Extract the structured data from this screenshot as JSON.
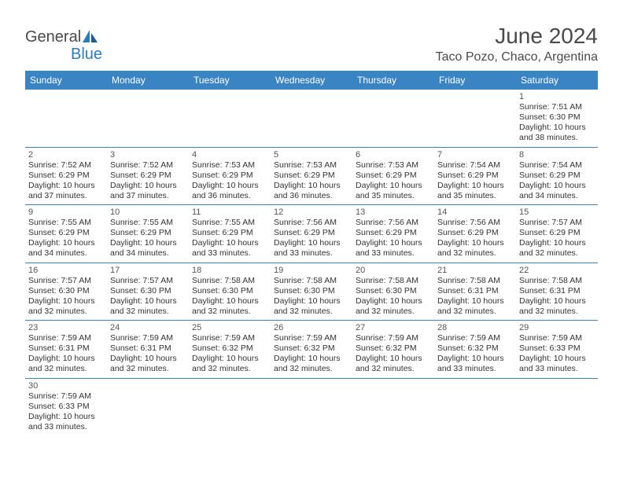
{
  "logo": {
    "general": "General",
    "blue": "Blue"
  },
  "title": "June 2024",
  "location": "Taco Pozo, Chaco, Argentina",
  "colors": {
    "header_bg": "#3b84c4",
    "header_text": "#ffffff",
    "border": "#3b84c4",
    "text": "#333333",
    "title_color": "#4a4a4a",
    "logo_blue": "#2a7bbf"
  },
  "typography": {
    "title_fontsize": 28,
    "location_fontsize": 16,
    "dayhead_fontsize": 12,
    "cell_fontsize": 10.5
  },
  "dayheads": [
    "Sunday",
    "Monday",
    "Tuesday",
    "Wednesday",
    "Thursday",
    "Friday",
    "Saturday"
  ],
  "weeks": [
    [
      null,
      null,
      null,
      null,
      null,
      null,
      {
        "n": "1",
        "sunrise": "Sunrise: 7:51 AM",
        "sunset": "Sunset: 6:30 PM",
        "daylight": "Daylight: 10 hours and 38 minutes."
      }
    ],
    [
      {
        "n": "2",
        "sunrise": "Sunrise: 7:52 AM",
        "sunset": "Sunset: 6:29 PM",
        "daylight": "Daylight: 10 hours and 37 minutes."
      },
      {
        "n": "3",
        "sunrise": "Sunrise: 7:52 AM",
        "sunset": "Sunset: 6:29 PM",
        "daylight": "Daylight: 10 hours and 37 minutes."
      },
      {
        "n": "4",
        "sunrise": "Sunrise: 7:53 AM",
        "sunset": "Sunset: 6:29 PM",
        "daylight": "Daylight: 10 hours and 36 minutes."
      },
      {
        "n": "5",
        "sunrise": "Sunrise: 7:53 AM",
        "sunset": "Sunset: 6:29 PM",
        "daylight": "Daylight: 10 hours and 36 minutes."
      },
      {
        "n": "6",
        "sunrise": "Sunrise: 7:53 AM",
        "sunset": "Sunset: 6:29 PM",
        "daylight": "Daylight: 10 hours and 35 minutes."
      },
      {
        "n": "7",
        "sunrise": "Sunrise: 7:54 AM",
        "sunset": "Sunset: 6:29 PM",
        "daylight": "Daylight: 10 hours and 35 minutes."
      },
      {
        "n": "8",
        "sunrise": "Sunrise: 7:54 AM",
        "sunset": "Sunset: 6:29 PM",
        "daylight": "Daylight: 10 hours and 34 minutes."
      }
    ],
    [
      {
        "n": "9",
        "sunrise": "Sunrise: 7:55 AM",
        "sunset": "Sunset: 6:29 PM",
        "daylight": "Daylight: 10 hours and 34 minutes."
      },
      {
        "n": "10",
        "sunrise": "Sunrise: 7:55 AM",
        "sunset": "Sunset: 6:29 PM",
        "daylight": "Daylight: 10 hours and 34 minutes."
      },
      {
        "n": "11",
        "sunrise": "Sunrise: 7:55 AM",
        "sunset": "Sunset: 6:29 PM",
        "daylight": "Daylight: 10 hours and 33 minutes."
      },
      {
        "n": "12",
        "sunrise": "Sunrise: 7:56 AM",
        "sunset": "Sunset: 6:29 PM",
        "daylight": "Daylight: 10 hours and 33 minutes."
      },
      {
        "n": "13",
        "sunrise": "Sunrise: 7:56 AM",
        "sunset": "Sunset: 6:29 PM",
        "daylight": "Daylight: 10 hours and 33 minutes."
      },
      {
        "n": "14",
        "sunrise": "Sunrise: 7:56 AM",
        "sunset": "Sunset: 6:29 PM",
        "daylight": "Daylight: 10 hours and 32 minutes."
      },
      {
        "n": "15",
        "sunrise": "Sunrise: 7:57 AM",
        "sunset": "Sunset: 6:29 PM",
        "daylight": "Daylight: 10 hours and 32 minutes."
      }
    ],
    [
      {
        "n": "16",
        "sunrise": "Sunrise: 7:57 AM",
        "sunset": "Sunset: 6:30 PM",
        "daylight": "Daylight: 10 hours and 32 minutes."
      },
      {
        "n": "17",
        "sunrise": "Sunrise: 7:57 AM",
        "sunset": "Sunset: 6:30 PM",
        "daylight": "Daylight: 10 hours and 32 minutes."
      },
      {
        "n": "18",
        "sunrise": "Sunrise: 7:58 AM",
        "sunset": "Sunset: 6:30 PM",
        "daylight": "Daylight: 10 hours and 32 minutes."
      },
      {
        "n": "19",
        "sunrise": "Sunrise: 7:58 AM",
        "sunset": "Sunset: 6:30 PM",
        "daylight": "Daylight: 10 hours and 32 minutes."
      },
      {
        "n": "20",
        "sunrise": "Sunrise: 7:58 AM",
        "sunset": "Sunset: 6:30 PM",
        "daylight": "Daylight: 10 hours and 32 minutes."
      },
      {
        "n": "21",
        "sunrise": "Sunrise: 7:58 AM",
        "sunset": "Sunset: 6:31 PM",
        "daylight": "Daylight: 10 hours and 32 minutes."
      },
      {
        "n": "22",
        "sunrise": "Sunrise: 7:58 AM",
        "sunset": "Sunset: 6:31 PM",
        "daylight": "Daylight: 10 hours and 32 minutes."
      }
    ],
    [
      {
        "n": "23",
        "sunrise": "Sunrise: 7:59 AM",
        "sunset": "Sunset: 6:31 PM",
        "daylight": "Daylight: 10 hours and 32 minutes."
      },
      {
        "n": "24",
        "sunrise": "Sunrise: 7:59 AM",
        "sunset": "Sunset: 6:31 PM",
        "daylight": "Daylight: 10 hours and 32 minutes."
      },
      {
        "n": "25",
        "sunrise": "Sunrise: 7:59 AM",
        "sunset": "Sunset: 6:32 PM",
        "daylight": "Daylight: 10 hours and 32 minutes."
      },
      {
        "n": "26",
        "sunrise": "Sunrise: 7:59 AM",
        "sunset": "Sunset: 6:32 PM",
        "daylight": "Daylight: 10 hours and 32 minutes."
      },
      {
        "n": "27",
        "sunrise": "Sunrise: 7:59 AM",
        "sunset": "Sunset: 6:32 PM",
        "daylight": "Daylight: 10 hours and 32 minutes."
      },
      {
        "n": "28",
        "sunrise": "Sunrise: 7:59 AM",
        "sunset": "Sunset: 6:32 PM",
        "daylight": "Daylight: 10 hours and 33 minutes."
      },
      {
        "n": "29",
        "sunrise": "Sunrise: 7:59 AM",
        "sunset": "Sunset: 6:33 PM",
        "daylight": "Daylight: 10 hours and 33 minutes."
      }
    ],
    [
      {
        "n": "30",
        "sunrise": "Sunrise: 7:59 AM",
        "sunset": "Sunset: 6:33 PM",
        "daylight": "Daylight: 10 hours and 33 minutes."
      },
      null,
      null,
      null,
      null,
      null,
      null
    ]
  ]
}
